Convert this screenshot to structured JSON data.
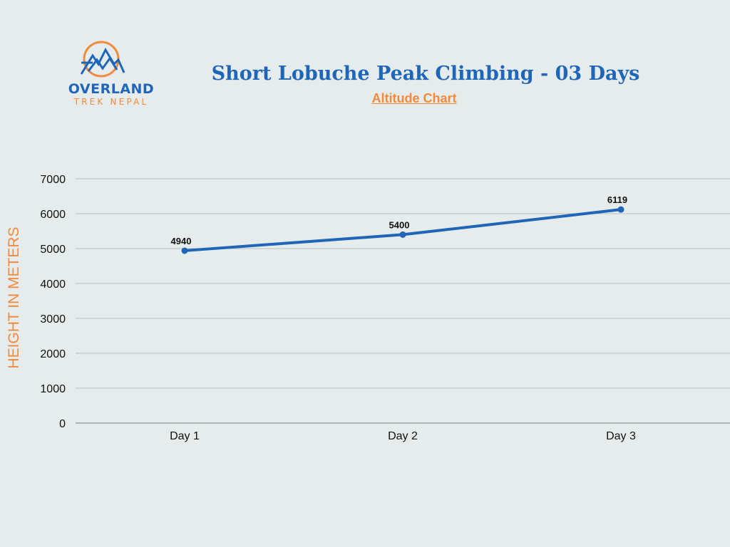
{
  "logo": {
    "line1": "OVERLAND",
    "line2": "TREK NEPAL",
    "icon": "mountain-circle-icon"
  },
  "header": {
    "title": "Short Lobuche Peak Climbing - 03 Days",
    "subtitle": "Altitude Chart"
  },
  "colors": {
    "primary_blue": "#1f66b8",
    "accent_orange": "#f08a3e",
    "background": "#e6ecec",
    "gridline": "#b8bdbd"
  },
  "chart_data": {
    "type": "line",
    "title": "Short Lobuche Peak Climbing - 03 Days",
    "subtitle": "Altitude Chart",
    "xlabel": "",
    "ylabel": "HEIGHT IN METERS",
    "categories": [
      "Day 1",
      "Day 2",
      "Day 3"
    ],
    "values": [
      4940,
      5400,
      6119
    ],
    "data_labels": [
      "4940",
      "5400",
      "6119"
    ],
    "ylim": [
      0,
      7000
    ],
    "yticks": [
      0,
      1000,
      2000,
      3000,
      4000,
      5000,
      6000,
      7000
    ],
    "grid": true,
    "legend": "none",
    "line_color": "#1f66b8"
  }
}
